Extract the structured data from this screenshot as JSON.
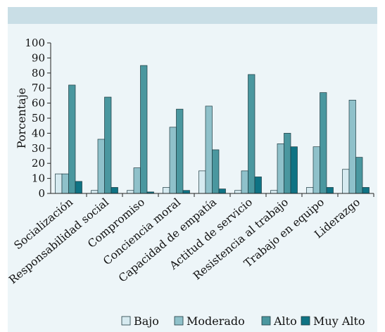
{
  "chart_data": {
    "type": "bar",
    "ylabel": "Porcentaje",
    "ylim": [
      0,
      100
    ],
    "yticks": [
      0,
      10,
      20,
      30,
      40,
      50,
      60,
      70,
      80,
      90,
      100
    ],
    "categories": [
      "Socialización",
      "Responsabilidad social",
      "Compromiso",
      "Conciencia moral",
      "Capacidad de empatía",
      "Actitud de servicio",
      "Resistencia al trabajo",
      "Trabajo en equipo",
      "Liderazgo"
    ],
    "series": [
      {
        "name": "Bajo",
        "color": "#d6eaf0",
        "values": [
          13,
          2,
          2,
          4,
          15,
          2,
          2,
          4,
          16
        ]
      },
      {
        "name": "Moderado",
        "color": "#8fc1ca",
        "values": [
          13,
          36,
          17,
          44,
          58,
          15,
          33,
          31,
          62
        ]
      },
      {
        "name": "Alto",
        "color": "#4a979f",
        "values": [
          72,
          64,
          85,
          56,
          29,
          79,
          40,
          67,
          24
        ]
      },
      {
        "name": "Muy Alto",
        "color": "#0f7384",
        "values": [
          8,
          4,
          1,
          2,
          3,
          11,
          31,
          4,
          4
        ]
      }
    ],
    "grid": false,
    "legend_position": "bottom"
  }
}
